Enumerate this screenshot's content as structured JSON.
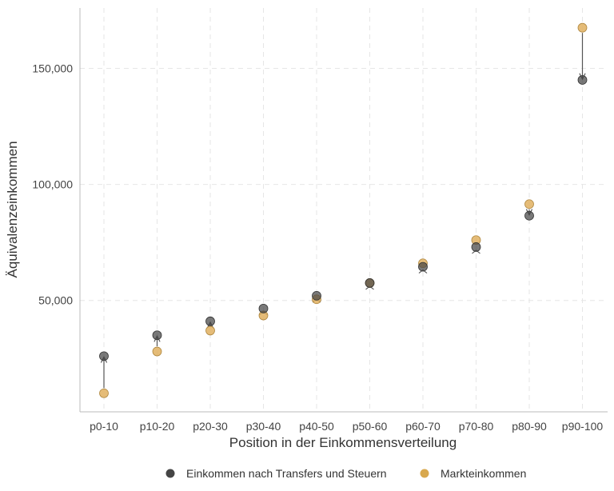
{
  "chart_data": {
    "type": "scatter",
    "categories": [
      "p0-10",
      "p10-20",
      "p20-30",
      "p30-40",
      "p40-50",
      "p50-60",
      "p60-70",
      "p70-80",
      "p80-90",
      "p90-100"
    ],
    "series": [
      {
        "name": "Einkommen nach Transfers und Steuern",
        "color": "#454545",
        "values": [
          26000,
          35000,
          41000,
          46500,
          52000,
          57500,
          64500,
          73000,
          86500,
          145000
        ]
      },
      {
        "name": "Markteinkommen",
        "color": "#e0b060",
        "values": [
          10000,
          28000,
          37000,
          43500,
          50500,
          57500,
          66000,
          76000,
          91500,
          167500
        ]
      }
    ],
    "arrows": "Markteinkommen -> Einkommen nach Transfers und Steuern",
    "xlabel": "Position in der Einkommensverteilung",
    "ylabel": "Äquivalenzeinkommen",
    "yticks": [
      50000,
      100000,
      150000
    ],
    "ytick_labels": [
      "50,000",
      "100,000",
      "150,000"
    ],
    "ylim": [
      2000,
      176000
    ],
    "grid": true,
    "legend_position": "bottom"
  }
}
